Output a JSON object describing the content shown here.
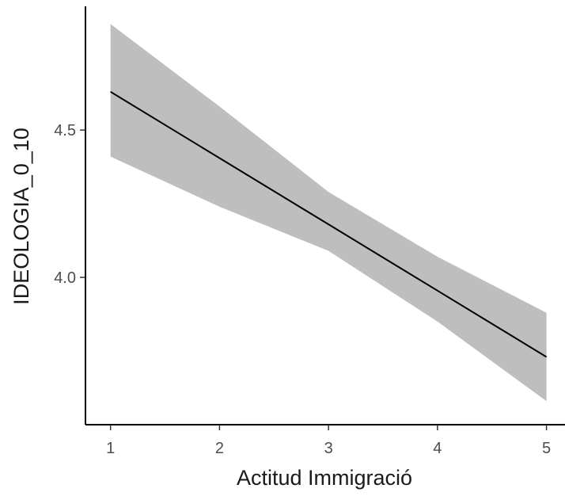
{
  "chart_data": {
    "type": "line",
    "title": "",
    "xlabel": "Actitud Immigració",
    "ylabel": "IDEOLOGIA_0_10",
    "xlim": [
      0.77,
      5.17
    ],
    "ylim": [
      3.5,
      4.92
    ],
    "x_ticks": [
      1,
      2,
      3,
      4,
      5
    ],
    "x_tick_labels": [
      "1",
      "2",
      "3",
      "4",
      "5"
    ],
    "y_ticks": [
      4.0,
      4.5
    ],
    "y_tick_labels": [
      "4.0",
      "4.5"
    ],
    "grid": false,
    "legend": "none",
    "series": [
      {
        "x": [
          1,
          2,
          3,
          4,
          5
        ],
        "values": [
          4.63,
          4.405,
          4.18,
          3.955,
          3.73
        ]
      }
    ],
    "confidence_band": {
      "x": [
        1,
        2,
        3,
        4,
        5
      ],
      "lower": [
        4.41,
        4.24,
        4.09,
        3.85,
        3.58
      ],
      "upper": [
        4.86,
        4.58,
        4.29,
        4.07,
        3.88
      ]
    },
    "colors": {
      "line": "#000000",
      "band": "#bebebe",
      "axis": "#000000"
    }
  }
}
